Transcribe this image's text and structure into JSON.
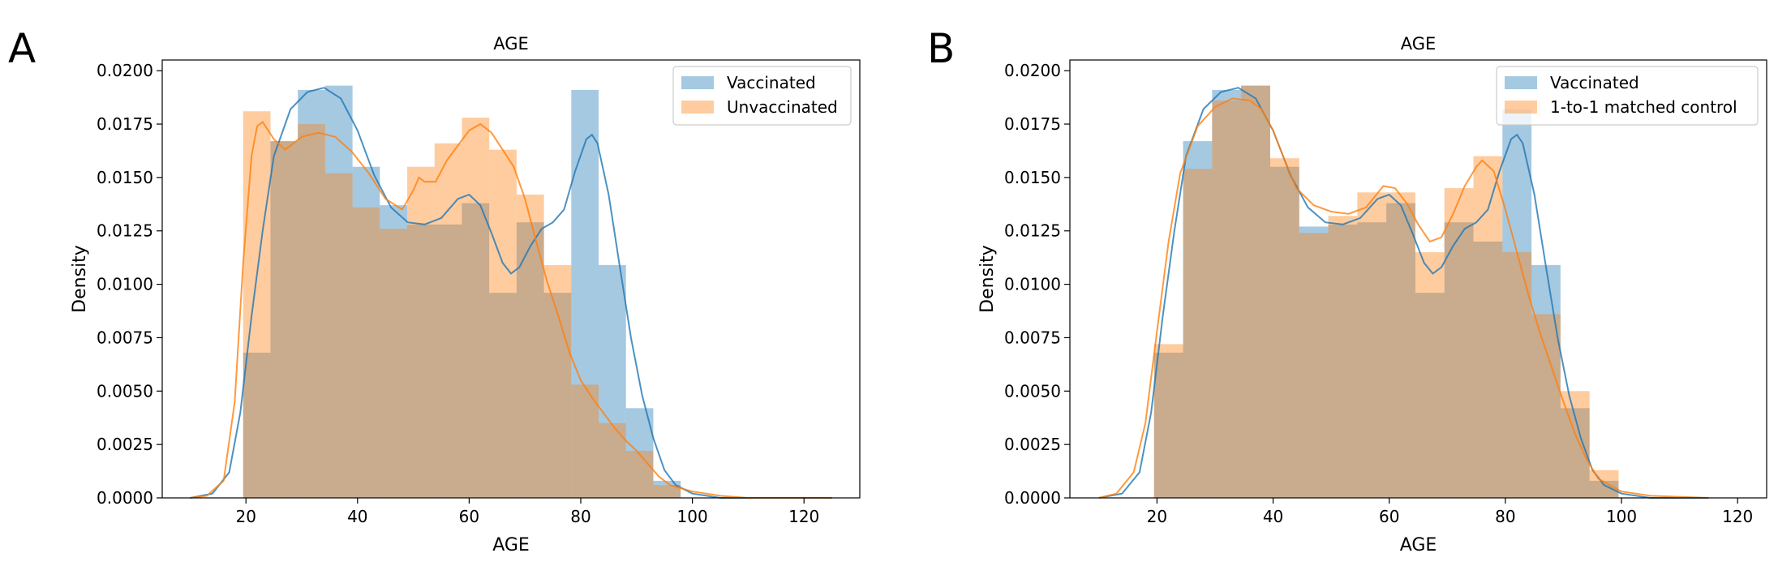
{
  "colors": {
    "vaccinated": "#1f77b4",
    "control": "#ff7f0e",
    "bar_alpha": 0.4,
    "kde_alpha": 0.8
  },
  "chart_data": [
    {
      "panel_label": "A",
      "type": "histogram",
      "title": "AGE",
      "xlabel": "AGE",
      "ylabel": "Density",
      "xlim": [
        5,
        130
      ],
      "ylim": [
        0,
        0.0205
      ],
      "xticks": [
        20,
        40,
        60,
        80,
        100,
        120
      ],
      "yticks": [
        "0.0000",
        "0.0025",
        "0.0050",
        "0.0075",
        "0.0100",
        "0.0125",
        "0.0150",
        "0.0175",
        "0.0200"
      ],
      "legend_position": "upper right",
      "series": [
        {
          "name": "Vaccinated",
          "color_key": "vaccinated",
          "bin_edges": [
            19.5,
            24.4,
            29.3,
            34.2,
            39.1,
            44.0,
            48.9,
            53.8,
            58.7,
            63.6,
            68.5,
            73.4,
            78.3,
            83.2,
            88.1,
            93.0,
            97.9
          ],
          "densities": [
            0.0068,
            0.0167,
            0.0191,
            0.0193,
            0.0155,
            0.0137,
            0.0128,
            0.0128,
            0.0138,
            0.0096,
            0.0129,
            0.0096,
            0.0191,
            0.0109,
            0.0042,
            0.0008
          ],
          "kde": [
            [
              10,
              0.0
            ],
            [
              14,
              0.0002
            ],
            [
              17,
              0.0012
            ],
            [
              19,
              0.004
            ],
            [
              21,
              0.0085
            ],
            [
              23,
              0.0125
            ],
            [
              25,
              0.016
            ],
            [
              28,
              0.0182
            ],
            [
              31,
              0.019
            ],
            [
              34,
              0.0192
            ],
            [
              37,
              0.0187
            ],
            [
              40,
              0.0172
            ],
            [
              43,
              0.0151
            ],
            [
              46,
              0.0136
            ],
            [
              49,
              0.0129
            ],
            [
              52,
              0.0128
            ],
            [
              55,
              0.0131
            ],
            [
              58,
              0.014
            ],
            [
              60,
              0.0142
            ],
            [
              62,
              0.0137
            ],
            [
              64,
              0.0124
            ],
            [
              66,
              0.011
            ],
            [
              67.5,
              0.0105
            ],
            [
              69,
              0.0108
            ],
            [
              71,
              0.0118
            ],
            [
              73,
              0.0126
            ],
            [
              75,
              0.0129
            ],
            [
              77,
              0.0135
            ],
            [
              79,
              0.0153
            ],
            [
              81,
              0.0168
            ],
            [
              82,
              0.017
            ],
            [
              83,
              0.0166
            ],
            [
              85,
              0.0142
            ],
            [
              87,
              0.0108
            ],
            [
              89,
              0.0075
            ],
            [
              91,
              0.0048
            ],
            [
              93,
              0.0028
            ],
            [
              95,
              0.0013
            ],
            [
              97,
              0.0006
            ],
            [
              100,
              0.0002
            ],
            [
              105,
              0.0
            ],
            [
              125,
              0.0
            ]
          ]
        },
        {
          "name": "Unvaccinated",
          "color_key": "control",
          "bin_edges": [
            19.5,
            24.4,
            29.3,
            34.2,
            39.1,
            44.0,
            48.9,
            53.8,
            58.7,
            63.6,
            68.5,
            73.4,
            78.3,
            83.2,
            88.1,
            93.0,
            97.9
          ],
          "densities": [
            0.0181,
            0.0167,
            0.0175,
            0.0152,
            0.0136,
            0.0126,
            0.0155,
            0.0166,
            0.0178,
            0.0163,
            0.0142,
            0.0109,
            0.0053,
            0.0035,
            0.0022,
            0.0006
          ],
          "kde": [
            [
              10,
              0.0
            ],
            [
              13,
              0.0001
            ],
            [
              16,
              0.0008
            ],
            [
              18,
              0.0045
            ],
            [
              19.5,
              0.011
            ],
            [
              21,
              0.016
            ],
            [
              22,
              0.0174
            ],
            [
              23,
              0.0176
            ],
            [
              25,
              0.0168
            ],
            [
              27,
              0.0163
            ],
            [
              30,
              0.0169
            ],
            [
              33,
              0.0171
            ],
            [
              36,
              0.0169
            ],
            [
              39,
              0.0162
            ],
            [
              42,
              0.0152
            ],
            [
              45,
              0.014
            ],
            [
              48,
              0.0135
            ],
            [
              50,
              0.0144
            ],
            [
              51,
              0.015
            ],
            [
              52,
              0.0148
            ],
            [
              54,
              0.0148
            ],
            [
              56,
              0.0158
            ],
            [
              58,
              0.0165
            ],
            [
              60,
              0.0172
            ],
            [
              62,
              0.0175
            ],
            [
              64,
              0.0171
            ],
            [
              66,
              0.0163
            ],
            [
              68,
              0.0155
            ],
            [
              70,
              0.014
            ],
            [
              72,
              0.012
            ],
            [
              74,
              0.0101
            ],
            [
              76,
              0.0085
            ],
            [
              78,
              0.0068
            ],
            [
              80,
              0.0055
            ],
            [
              82,
              0.0047
            ],
            [
              84,
              0.004
            ],
            [
              86,
              0.0033
            ],
            [
              88,
              0.0027
            ],
            [
              90,
              0.0022
            ],
            [
              92,
              0.0016
            ],
            [
              94,
              0.001
            ],
            [
              96,
              0.0006
            ],
            [
              100,
              0.0003
            ],
            [
              105,
              0.0001
            ],
            [
              110,
              0.0
            ],
            [
              125,
              0.0
            ]
          ]
        }
      ]
    },
    {
      "panel_label": "B",
      "type": "histogram",
      "title": "AGE",
      "xlabel": "AGE",
      "ylabel": "Density",
      "xlim": [
        5,
        125
      ],
      "ylim": [
        0,
        0.0205
      ],
      "xticks": [
        20,
        40,
        60,
        80,
        100,
        120
      ],
      "yticks": [
        "0.0000",
        "0.0025",
        "0.0050",
        "0.0075",
        "0.0100",
        "0.0125",
        "0.0150",
        "0.0175",
        "0.0200"
      ],
      "legend_position": "upper right",
      "series": [
        {
          "name": "Vaccinated",
          "color_key": "vaccinated",
          "bin_edges": [
            19.5,
            24.5,
            29.5,
            34.5,
            39.5,
            44.5,
            49.5,
            54.5,
            59.5,
            64.5,
            69.5,
            74.5,
            79.5,
            84.5,
            89.5,
            94.5,
            99.5
          ],
          "densities": [
            0.0068,
            0.0167,
            0.0191,
            0.0193,
            0.0155,
            0.0127,
            0.0128,
            0.0129,
            0.0138,
            0.0096,
            0.0129,
            0.012,
            0.0182,
            0.0109,
            0.0042,
            0.0008
          ],
          "kde": [
            [
              10,
              0.0
            ],
            [
              14,
              0.0002
            ],
            [
              17,
              0.0012
            ],
            [
              19,
              0.004
            ],
            [
              21,
              0.0085
            ],
            [
              23,
              0.0125
            ],
            [
              25,
              0.016
            ],
            [
              28,
              0.0182
            ],
            [
              31,
              0.019
            ],
            [
              34,
              0.0192
            ],
            [
              37,
              0.0187
            ],
            [
              40,
              0.0172
            ],
            [
              43,
              0.0151
            ],
            [
              46,
              0.0136
            ],
            [
              49,
              0.0129
            ],
            [
              52,
              0.0128
            ],
            [
              55,
              0.0131
            ],
            [
              58,
              0.014
            ],
            [
              60,
              0.0142
            ],
            [
              62,
              0.0137
            ],
            [
              64,
              0.0124
            ],
            [
              66,
              0.011
            ],
            [
              67.5,
              0.0105
            ],
            [
              69,
              0.0108
            ],
            [
              71,
              0.0118
            ],
            [
              73,
              0.0126
            ],
            [
              75,
              0.0129
            ],
            [
              77,
              0.0135
            ],
            [
              79,
              0.0153
            ],
            [
              81,
              0.0168
            ],
            [
              82,
              0.017
            ],
            [
              83,
              0.0166
            ],
            [
              85,
              0.0142
            ],
            [
              87,
              0.0108
            ],
            [
              89,
              0.0075
            ],
            [
              91,
              0.0048
            ],
            [
              93,
              0.0028
            ],
            [
              95,
              0.0013
            ],
            [
              97,
              0.0006
            ],
            [
              100,
              0.0002
            ],
            [
              105,
              0.0
            ],
            [
              115,
              0.0
            ]
          ]
        },
        {
          "name": "1-to-1 matched control",
          "color_key": "control",
          "bin_edges": [
            19.5,
            24.5,
            29.5,
            34.5,
            39.5,
            44.5,
            49.5,
            54.5,
            59.5,
            64.5,
            69.5,
            74.5,
            79.5,
            84.5,
            89.5,
            94.5,
            99.5
          ],
          "densities": [
            0.0072,
            0.0154,
            0.0186,
            0.0193,
            0.0159,
            0.0124,
            0.0132,
            0.0143,
            0.0143,
            0.0115,
            0.0145,
            0.016,
            0.0115,
            0.0086,
            0.005,
            0.0013
          ],
          "kde": [
            [
              10,
              0.0
            ],
            [
              13,
              0.0002
            ],
            [
              16,
              0.0012
            ],
            [
              18,
              0.0035
            ],
            [
              20,
              0.0078
            ],
            [
              22,
              0.012
            ],
            [
              24,
              0.0152
            ],
            [
              27,
              0.0174
            ],
            [
              30,
              0.0183
            ],
            [
              33,
              0.0187
            ],
            [
              36,
              0.0186
            ],
            [
              38,
              0.0182
            ],
            [
              40,
              0.0172
            ],
            [
              42,
              0.0158
            ],
            [
              44,
              0.0145
            ],
            [
              47,
              0.0137
            ],
            [
              50,
              0.0134
            ],
            [
              53,
              0.0133
            ],
            [
              56,
              0.0136
            ],
            [
              59,
              0.0146
            ],
            [
              61,
              0.0145
            ],
            [
              63,
              0.0138
            ],
            [
              65,
              0.0128
            ],
            [
              67,
              0.012
            ],
            [
              69,
              0.0122
            ],
            [
              71,
              0.0133
            ],
            [
              73,
              0.0146
            ],
            [
              75,
              0.0155
            ],
            [
              76,
              0.0158
            ],
            [
              78,
              0.0153
            ],
            [
              80,
              0.0135
            ],
            [
              82,
              0.0115
            ],
            [
              84,
              0.0095
            ],
            [
              86,
              0.0077
            ],
            [
              88,
              0.0061
            ],
            [
              90,
              0.0045
            ],
            [
              92,
              0.003
            ],
            [
              94,
              0.0018
            ],
            [
              96,
              0.0009
            ],
            [
              100,
              0.0003
            ],
            [
              105,
              0.0001
            ],
            [
              115,
              0.0
            ]
          ]
        }
      ]
    }
  ]
}
